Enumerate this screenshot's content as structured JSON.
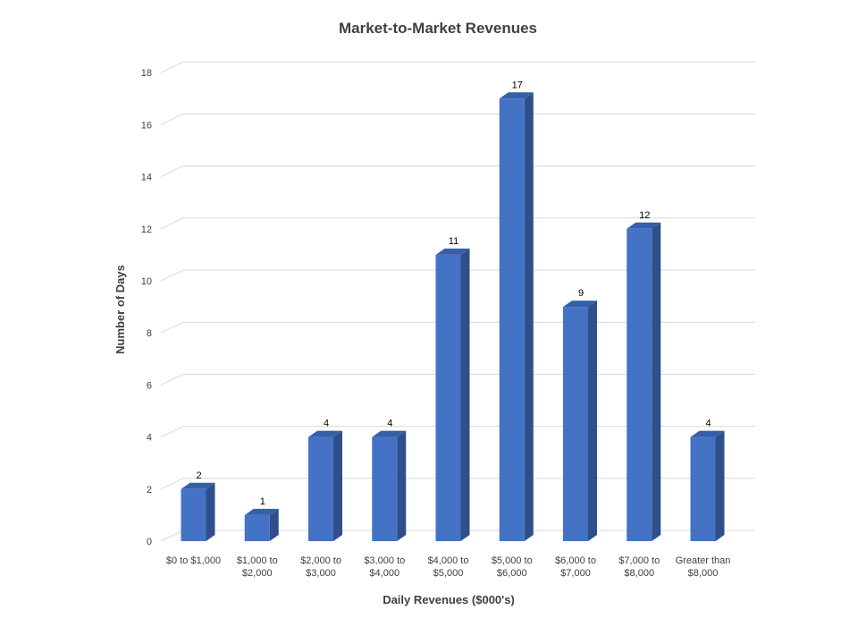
{
  "chart_data": {
    "type": "bar",
    "style": "3d-column",
    "title": "Market-to-Market Revenues",
    "xlabel": "Daily Revenues ($000's)",
    "ylabel": "Number of Days",
    "categories": [
      [
        "$0 to $1,000"
      ],
      [
        "$1,000 to",
        "$2,000"
      ],
      [
        "$2,000 to",
        "$3,000"
      ],
      [
        "$3,000 to",
        "$4,000"
      ],
      [
        "$4,000 to",
        "$5,000"
      ],
      [
        "$5,000 to",
        "$6,000"
      ],
      [
        "$6,000 to",
        "$7,000"
      ],
      [
        "$7,000 to",
        "$8,000"
      ],
      [
        "Greater than",
        "$8,000"
      ]
    ],
    "values": [
      2,
      1,
      4,
      4,
      11,
      17,
      9,
      12,
      4
    ],
    "ylim": [
      0,
      18
    ],
    "yticks": [
      0,
      2,
      4,
      6,
      8,
      10,
      12,
      14,
      16,
      18
    ],
    "grid": true,
    "legend": "none",
    "colors": {
      "bar_front": "#4472c4",
      "bar_side": "#2f4f8c",
      "bar_top": "#365fa8",
      "gridline": "#d9d9d9",
      "text": "#404040"
    }
  }
}
